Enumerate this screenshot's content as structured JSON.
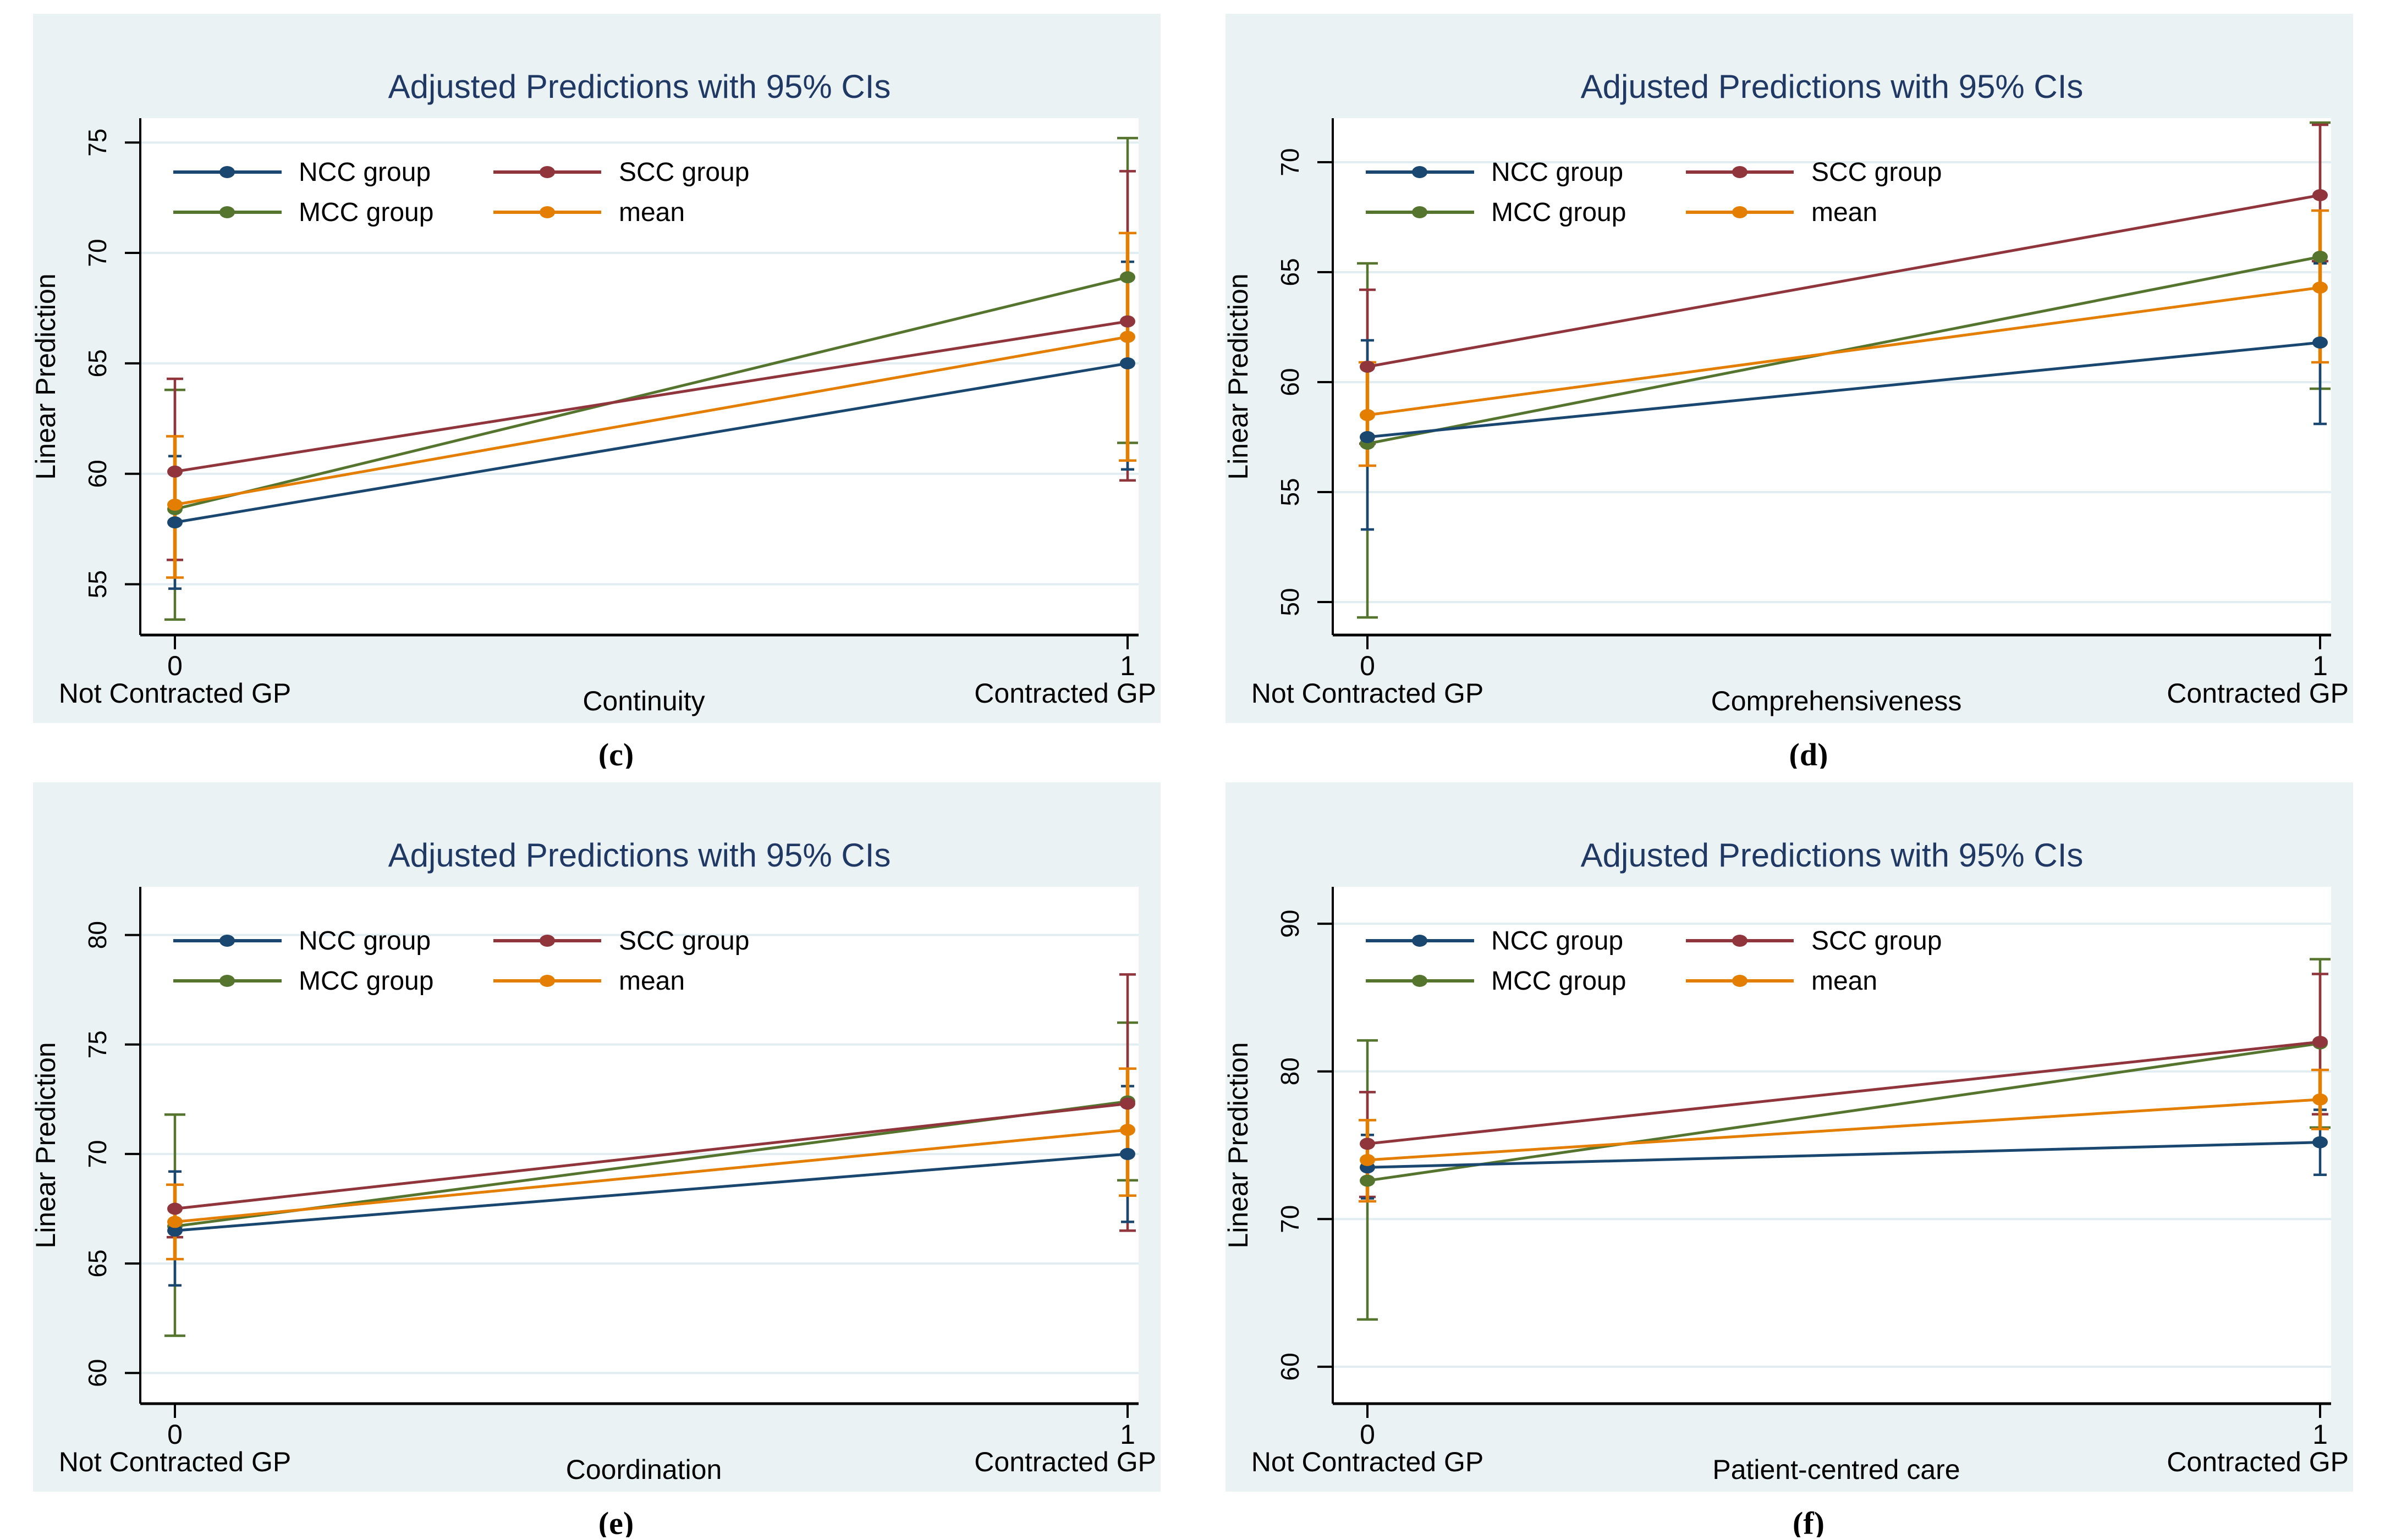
{
  "figure": {
    "page_bg": "#ffffff",
    "panel_bg": "#eaf2f3",
    "plot_bg": "#ffffff",
    "grid_color": "#e2edf2",
    "axis_color": "#000000",
    "title_color": "#1f3864",
    "text_color": "#000000"
  },
  "legend": {
    "labels": [
      "NCC group",
      "SCC group",
      "MCC group",
      "mean"
    ]
  },
  "series_colors": {
    "ncc": "#1a476f",
    "scc": "#90353b",
    "mcc": "#55752f",
    "mean": "#e37e00"
  },
  "chart_data": [
    {
      "id": "c",
      "type": "line",
      "caption": "(c)",
      "title": "Adjusted Predictions with 95% CIs",
      "xlabel": "Continuity",
      "ylabel": "Linear Prediction",
      "x": [
        0,
        1
      ],
      "x_tick_labels": [
        "0",
        "1"
      ],
      "x_end_labels": [
        "Not Contracted GP",
        "Contracted GP"
      ],
      "y_ticks": [
        55,
        60,
        65,
        70,
        75
      ],
      "ylim": [
        52.7,
        76.1
      ],
      "grid": true,
      "legend_position": "top-left",
      "series": [
        {
          "name": "NCC group",
          "color": "#1a476f",
          "values": [
            57.8,
            65.0
          ],
          "ci_low": [
            54.8,
            60.2
          ],
          "ci_high": [
            60.8,
            69.6
          ]
        },
        {
          "name": "SCC group",
          "color": "#90353b",
          "values": [
            60.1,
            66.9
          ],
          "ci_low": [
            56.1,
            59.7
          ],
          "ci_high": [
            64.3,
            73.7
          ]
        },
        {
          "name": "MCC group",
          "color": "#55752f",
          "values": [
            58.4,
            68.9
          ],
          "ci_low": [
            53.4,
            61.4
          ],
          "ci_high": [
            63.8,
            75.2
          ]
        },
        {
          "name": "mean",
          "color": "#e37e00",
          "values": [
            58.6,
            66.2
          ],
          "ci_low": [
            55.3,
            60.6
          ],
          "ci_high": [
            61.7,
            70.9
          ]
        }
      ]
    },
    {
      "id": "d",
      "type": "line",
      "caption": "(d)",
      "title": "Adjusted Predictions with 95% CIs",
      "xlabel": "Comprehensiveness",
      "ylabel": "Linear Prediction",
      "x": [
        0,
        1
      ],
      "x_tick_labels": [
        "0",
        "1"
      ],
      "x_end_labels": [
        "Not Contracted GP",
        "Contracted GP"
      ],
      "y_ticks": [
        50,
        55,
        60,
        65,
        70
      ],
      "ylim": [
        48.5,
        72.0
      ],
      "grid": true,
      "legend_position": "top-left",
      "series": [
        {
          "name": "NCC group",
          "color": "#1a476f",
          "values": [
            57.5,
            61.8
          ],
          "ci_low": [
            53.3,
            58.1
          ],
          "ci_high": [
            61.9,
            65.4
          ]
        },
        {
          "name": "SCC group",
          "color": "#90353b",
          "values": [
            60.7,
            68.5
          ],
          "ci_low": [
            57.2,
            65.5
          ],
          "ci_high": [
            64.2,
            71.7
          ]
        },
        {
          "name": "MCC group",
          "color": "#55752f",
          "values": [
            57.2,
            65.7
          ],
          "ci_low": [
            49.3,
            59.7
          ],
          "ci_high": [
            65.4,
            71.8
          ]
        },
        {
          "name": "mean",
          "color": "#e37e00",
          "values": [
            58.5,
            64.3
          ],
          "ci_low": [
            56.2,
            60.9
          ],
          "ci_high": [
            60.9,
            67.8
          ]
        }
      ]
    },
    {
      "id": "e",
      "type": "line",
      "caption": "(e)",
      "title": "Adjusted Predictions with 95% CIs",
      "xlabel": "Coordination",
      "ylabel": "Linear Prediction",
      "x": [
        0,
        1
      ],
      "x_tick_labels": [
        "0",
        "1"
      ],
      "x_end_labels": [
        "Not Contracted GP",
        "Contracted GP"
      ],
      "y_ticks": [
        60,
        65,
        70,
        75,
        80
      ],
      "ylim": [
        58.6,
        82.2
      ],
      "grid": true,
      "legend_position": "top-left",
      "series": [
        {
          "name": "NCC group",
          "color": "#1a476f",
          "values": [
            66.5,
            70.0
          ],
          "ci_low": [
            64.0,
            66.9
          ],
          "ci_high": [
            69.2,
            73.1
          ]
        },
        {
          "name": "SCC group",
          "color": "#90353b",
          "values": [
            67.5,
            72.3
          ],
          "ci_low": [
            66.2,
            66.5
          ],
          "ci_high": [
            68.6,
            78.2
          ]
        },
        {
          "name": "MCC group",
          "color": "#55752f",
          "values": [
            66.7,
            72.4
          ],
          "ci_low": [
            61.7,
            68.8
          ],
          "ci_high": [
            71.8,
            76.0
          ]
        },
        {
          "name": "mean",
          "color": "#e37e00",
          "values": [
            66.9,
            71.1
          ],
          "ci_low": [
            65.2,
            68.1
          ],
          "ci_high": [
            68.6,
            73.9
          ]
        }
      ]
    },
    {
      "id": "f",
      "type": "line",
      "caption": "(f)",
      "title": "Adjusted Predictions with 95% CIs",
      "xlabel": "Patient-centred care",
      "ylabel": "Linear Prediction",
      "x": [
        0,
        1
      ],
      "x_tick_labels": [
        "0",
        "1"
      ],
      "x_end_labels": [
        "Not Contracted GP",
        "Contracted GP"
      ],
      "y_ticks": [
        60,
        70,
        80,
        90
      ],
      "ylim": [
        57.5,
        92.5
      ],
      "grid": true,
      "legend_position": "top-left",
      "series": [
        {
          "name": "NCC group",
          "color": "#1a476f",
          "values": [
            73.5,
            75.2
          ],
          "ci_low": [
            71.4,
            73.0
          ],
          "ci_high": [
            75.7,
            77.4
          ]
        },
        {
          "name": "SCC group",
          "color": "#90353b",
          "values": [
            75.1,
            82.0
          ],
          "ci_low": [
            71.5,
            77.1
          ],
          "ci_high": [
            78.6,
            86.6
          ]
        },
        {
          "name": "MCC group",
          "color": "#55752f",
          "values": [
            72.6,
            81.9
          ],
          "ci_low": [
            63.2,
            76.2
          ],
          "ci_high": [
            82.1,
            87.6
          ]
        },
        {
          "name": "mean",
          "color": "#e37e00",
          "values": [
            74.0,
            78.1
          ],
          "ci_low": [
            71.2,
            76.1
          ],
          "ci_high": [
            76.7,
            80.1
          ]
        }
      ]
    }
  ]
}
